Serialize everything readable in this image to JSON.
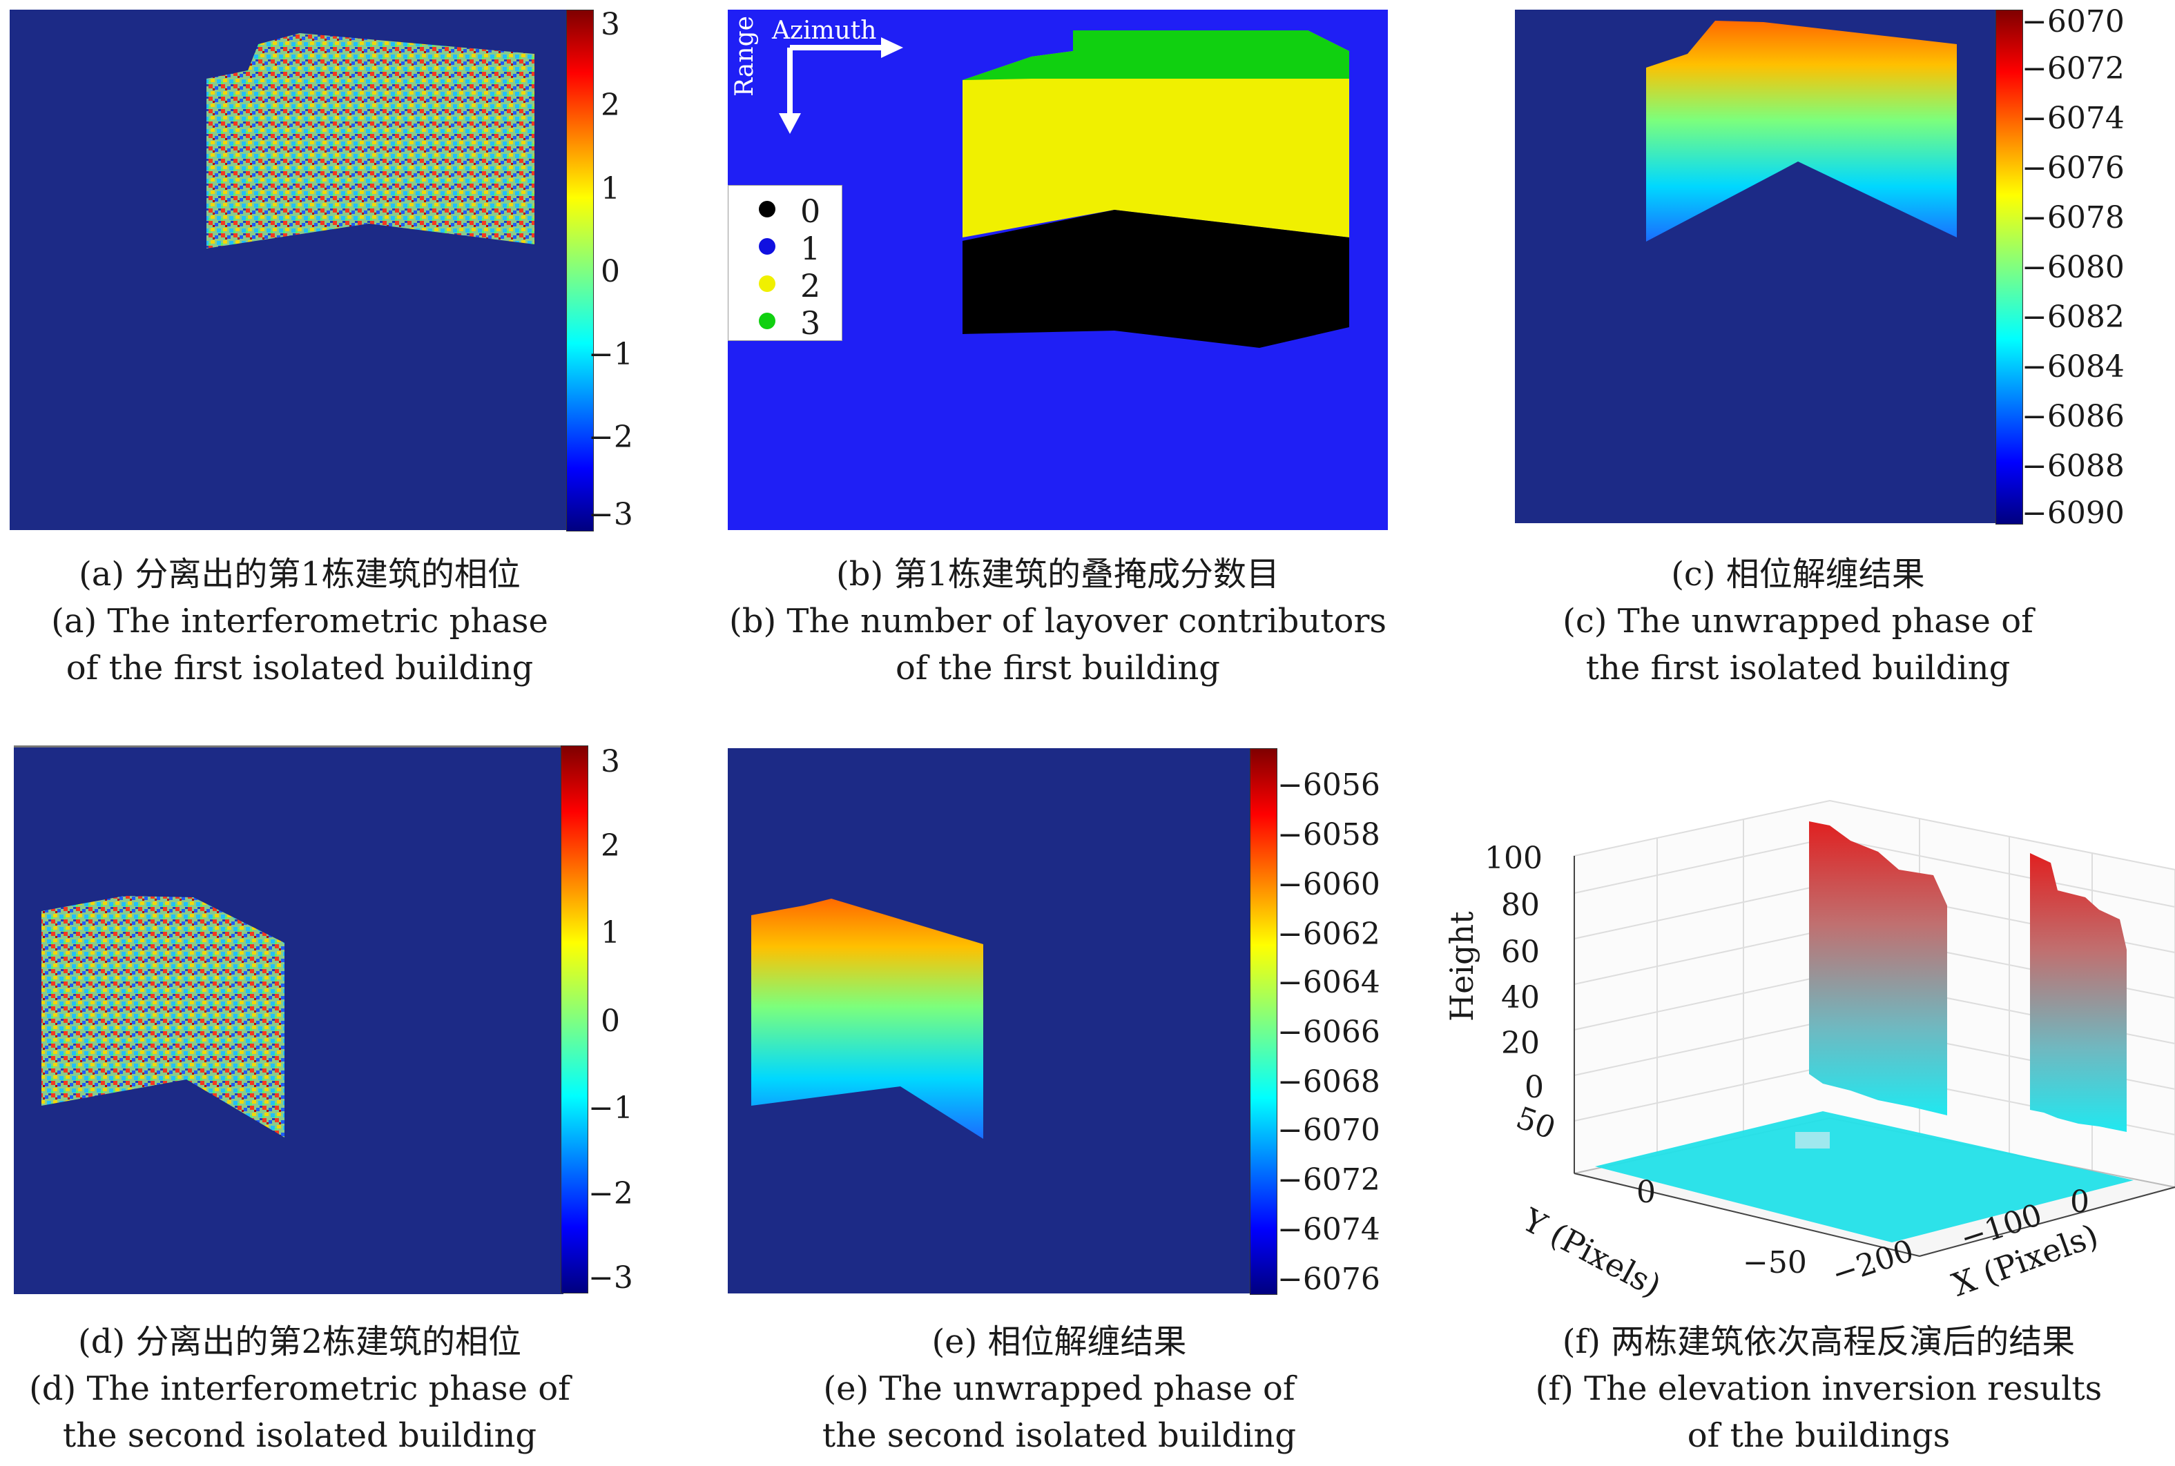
{
  "panels": {
    "a": {
      "caption_cn": "(a) 分离出的第1栋建筑的相位",
      "caption_en_1": "(a) The interferometric phase",
      "caption_en_2": "of the first isolated building",
      "colorbar_ticks": [
        "3",
        "2",
        "1",
        "0",
        "−1",
        "−2",
        "−3"
      ]
    },
    "b": {
      "caption_cn": "(b) 第1栋建筑的叠掩成分数目",
      "caption_en_1": "(b) The number of layover contributors",
      "caption_en_2": "of the first building",
      "azimuth_label": "Azimuth",
      "range_label": "Range",
      "legend": [
        {
          "label": "0",
          "color": "#000000"
        },
        {
          "label": "1",
          "color": "#1010e0"
        },
        {
          "label": "2",
          "color": "#f0f000"
        },
        {
          "label": "3",
          "color": "#10d010"
        }
      ]
    },
    "c": {
      "caption_cn": "(c) 相位解缠结果",
      "caption_en_1": "(c) The unwrapped phase of",
      "caption_en_2": "the first isolated building",
      "colorbar_ticks": [
        "−6070",
        "−6072",
        "−6074",
        "−6076",
        "−6078",
        "−6080",
        "−6082",
        "−6084",
        "−6086",
        "−6088",
        "−6090"
      ]
    },
    "d": {
      "caption_cn": "(d) 分离出的第2栋建筑的相位",
      "caption_en_1": "(d) The interferometric phase of",
      "caption_en_2": "the second isolated building",
      "colorbar_ticks": [
        "3",
        "2",
        "1",
        "0",
        "−1",
        "−2",
        "−3"
      ]
    },
    "e": {
      "caption_cn": "(e) 相位解缠结果",
      "caption_en_1": "(e) The unwrapped phase of",
      "caption_en_2": "the second isolated building",
      "colorbar_ticks": [
        "−6056",
        "−6058",
        "−6060",
        "−6062",
        "−6064",
        "−6066",
        "−6068",
        "−6070",
        "−6072",
        "−6074",
        "−6076"
      ]
    },
    "f": {
      "caption_cn": "(f) 两栋建筑依次高程反演后的结果",
      "caption_en_1": "(f) The elevation inversion results",
      "caption_en_2": "of the buildings",
      "zlabel": "Height",
      "ylabel": "Y (Pixels)",
      "xlabel": "X (Pixels)",
      "z_ticks": [
        "100",
        "80",
        "60",
        "40",
        "20",
        "0"
      ],
      "y_ticks": [
        "50",
        "0",
        "−50"
      ],
      "x_ticks": [
        "−200",
        "−100",
        "0"
      ]
    }
  },
  "colors": {
    "background_blue": "#1c2a86",
    "layover_blue": "#1f1ff5",
    "ground_cyan": "#22e0e8"
  }
}
